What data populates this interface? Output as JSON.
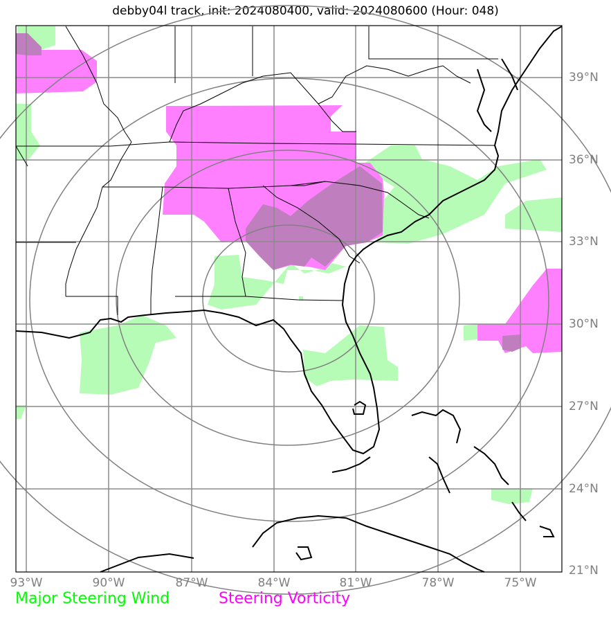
{
  "title": "debby04l track, init: 2024080400, valid: 2024080600 (Hour: 048)",
  "lon_labels": [
    "93°W",
    "90°W",
    "87°W",
    "84°W",
    "81°W",
    "78°W",
    "75°W"
  ],
  "lat_labels": [
    "39°N",
    "36°N",
    "33°N",
    "30°N",
    "27°N",
    "24°N",
    "21°N"
  ],
  "legend": [
    {
      "label": "Major Steering Wind",
      "color": "#00ff00"
    },
    {
      "label": "Steering Vorticity",
      "color": "#ff00ff"
    }
  ],
  "colors": {
    "wind_fill": "#b6fbb6",
    "vorticity_fill": "#ff80ff",
    "overlap_fill": "#bf7fbf",
    "grid": "#8a8a8a",
    "rings": "#808080",
    "coast": "#000000"
  }
}
